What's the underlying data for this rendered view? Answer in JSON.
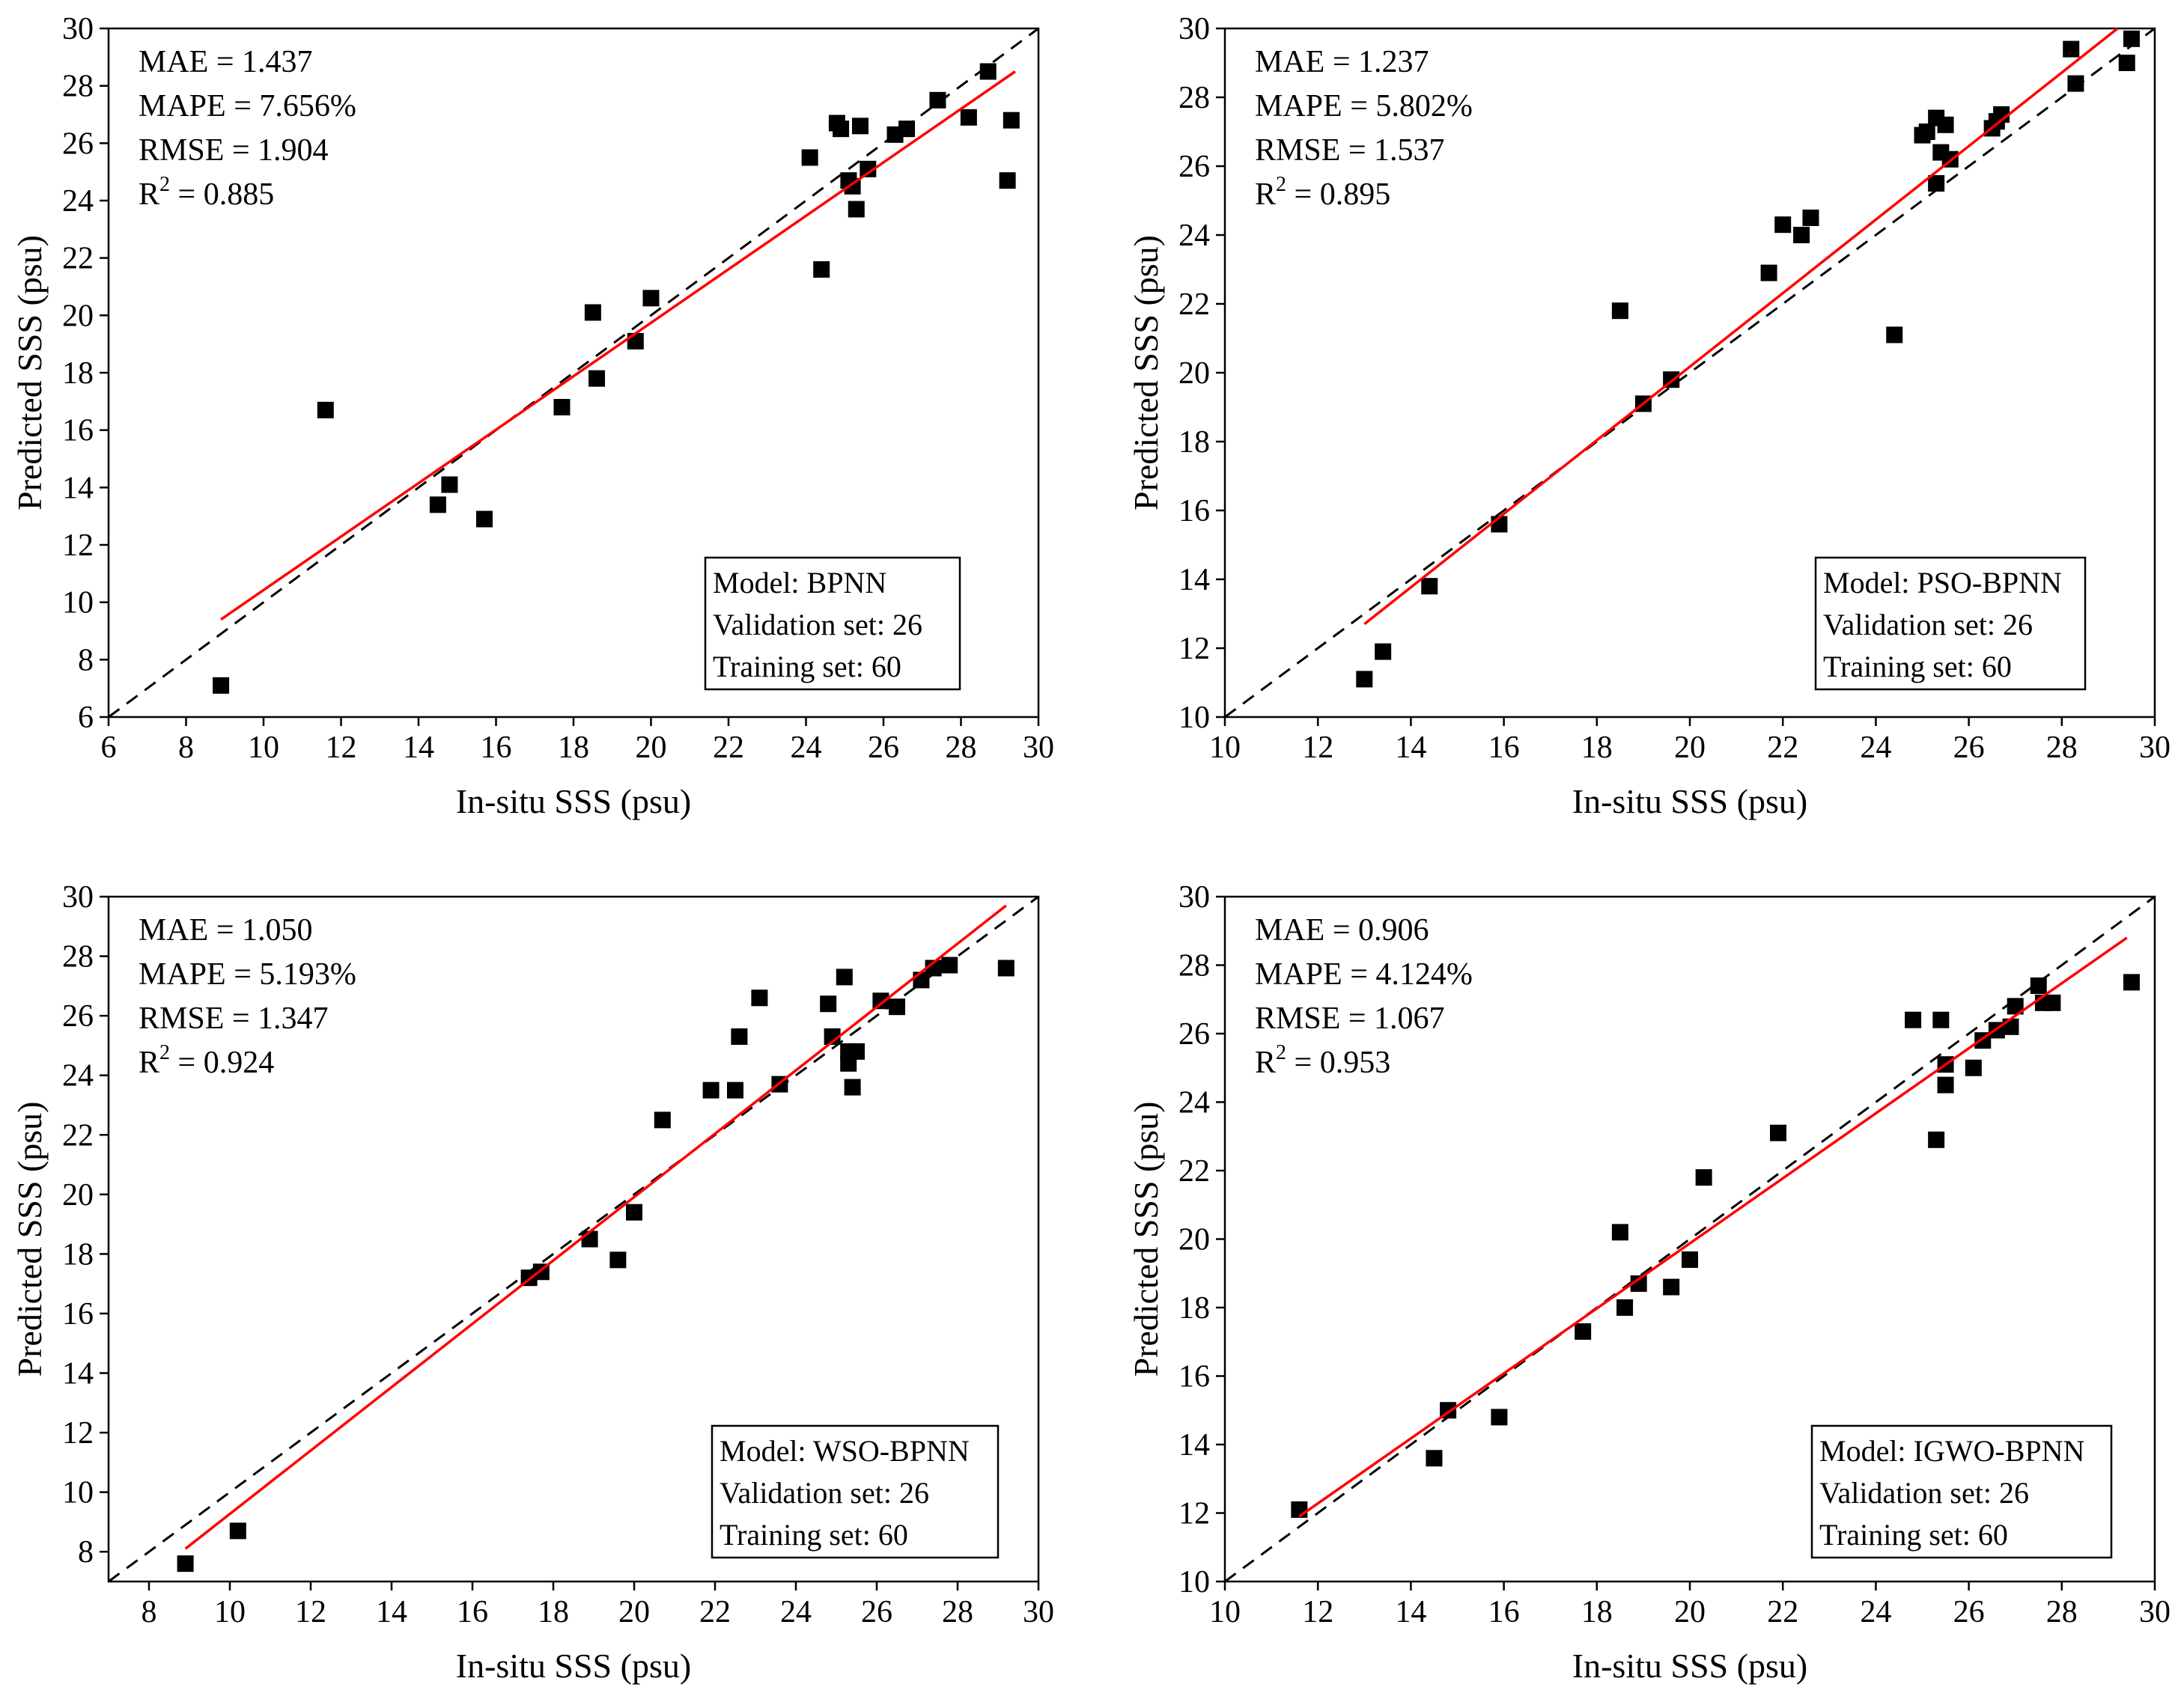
{
  "colors": {
    "points": "#000000",
    "fit_line": "#ff0000",
    "identity_line": "#000000",
    "background": "#ffffff"
  },
  "chart_data": [
    {
      "type": "scatter",
      "model": "BPNN",
      "xlabel": "In-situ SSS (psu)",
      "ylabel": "Predicted SSS (psu)",
      "xlim": [
        6,
        30
      ],
      "ylim": [
        6,
        30
      ],
      "xticks": [
        "6",
        "8",
        "10",
        "12",
        "14",
        "16",
        "18",
        "20",
        "22",
        "24",
        "26",
        "28",
        "30"
      ],
      "yticks": [
        "6",
        "8",
        "10",
        "12",
        "14",
        "16",
        "18",
        "20",
        "22",
        "24",
        "26",
        "28",
        "30"
      ],
      "stats": {
        "mae": "MAE = 1.437",
        "mape": "MAPE = 7.656%",
        "rmse": "RMSE = 1.904",
        "r2_prefix": "R",
        "r2_sup": "2",
        "r2_value": " = 0.885"
      },
      "legend": {
        "model": "Model: BPNN",
        "validation": "Validation set: 26",
        "training": "Training set: 60"
      },
      "fit_line": {
        "x": [
          8.9,
          29.4
        ],
        "y": [
          9.4,
          28.5
        ]
      },
      "identity_line": {
        "x": [
          6,
          30
        ],
        "y": [
          6,
          30
        ]
      },
      "points": {
        "x": [
          8.9,
          11.6,
          14.5,
          14.8,
          15.7,
          17.7,
          18.5,
          18.6,
          19.6,
          20.0,
          24.1,
          24.4,
          24.8,
          24.9,
          25.1,
          25.2,
          25.3,
          25.4,
          25.6,
          26.3,
          26.6,
          27.4,
          28.2,
          28.7,
          29.2,
          29.3
        ],
        "y": [
          7.1,
          16.7,
          13.4,
          14.1,
          12.9,
          16.8,
          20.1,
          17.8,
          19.1,
          20.6,
          25.5,
          21.6,
          26.7,
          26.5,
          24.7,
          24.5,
          23.7,
          26.6,
          25.1,
          26.3,
          26.5,
          27.5,
          26.9,
          28.5,
          24.7,
          26.8
        ]
      }
    },
    {
      "type": "scatter",
      "model": "PSO-BPNN",
      "xlabel": "In-situ SSS (psu)",
      "ylabel": "Predicted SSS (psu)",
      "xlim": [
        10,
        30
      ],
      "ylim": [
        10,
        30
      ],
      "xticks": [
        "10",
        "12",
        "14",
        "16",
        "18",
        "20",
        "22",
        "24",
        "26",
        "28",
        "30"
      ],
      "yticks": [
        "10",
        "12",
        "14",
        "16",
        "18",
        "20",
        "22",
        "24",
        "26",
        "28",
        "30"
      ],
      "stats": {
        "mae": "MAE = 1.237",
        "mape": "MAPE = 5.802%",
        "rmse": "RMSE = 1.537",
        "r2_prefix": "R",
        "r2_sup": "2",
        "r2_value": " = 0.895"
      },
      "legend": {
        "model": "Model: PSO-BPNN",
        "validation": "Validation set: 26",
        "training": "Training set: 60"
      },
      "fit_line": {
        "x": [
          13.0,
          29.2
        ],
        "y": [
          12.7,
          30.0
        ]
      },
      "identity_line": {
        "x": [
          10,
          30
        ],
        "y": [
          10,
          30
        ]
      },
      "points": {
        "x": [
          13.0,
          13.4,
          14.4,
          15.9,
          18.5,
          19.0,
          19.6,
          21.7,
          22.0,
          22.4,
          22.6,
          24.4,
          25.0,
          25.1,
          25.3,
          25.4,
          25.5,
          25.6,
          25.3,
          26.5,
          26.6,
          26.7,
          28.2,
          28.3,
          29.4,
          29.5
        ],
        "y": [
          11.1,
          11.9,
          13.8,
          15.6,
          21.8,
          19.1,
          19.8,
          22.9,
          24.3,
          24.0,
          24.5,
          21.1,
          26.9,
          27.0,
          27.4,
          26.4,
          27.2,
          26.2,
          25.5,
          27.1,
          27.3,
          27.5,
          29.4,
          28.4,
          29.0,
          29.7
        ]
      }
    },
    {
      "type": "scatter",
      "model": "WSO-BPNN",
      "xlabel": "In-situ SSS (psu)",
      "ylabel": "Predicted SSS (psu)",
      "xlim": [
        7,
        30
      ],
      "ylim": [
        7,
        30
      ],
      "xticks": [
        "8",
        "10",
        "12",
        "14",
        "16",
        "18",
        "20",
        "22",
        "24",
        "26",
        "28",
        "30"
      ],
      "yticks": [
        "8",
        "10",
        "12",
        "14",
        "16",
        "18",
        "20",
        "22",
        "24",
        "26",
        "28",
        "30"
      ],
      "stats": {
        "mae": "MAE = 1.050",
        "mape": "MAPE = 5.193%",
        "rmse": "RMSE = 1.347",
        "r2_prefix": "R",
        "r2_sup": "2",
        "r2_value": " = 0.924"
      },
      "legend": {
        "model": "Model: WSO-BPNN",
        "validation": "Validation set: 26",
        "training": "Training set: 60"
      },
      "fit_line": {
        "x": [
          8.9,
          29.2
        ],
        "y": [
          8.1,
          29.7
        ]
      },
      "identity_line": {
        "x": [
          7,
          30
        ],
        "y": [
          7,
          30
        ]
      },
      "points": {
        "x": [
          8.9,
          10.2,
          17.4,
          17.7,
          18.9,
          19.6,
          20.0,
          20.7,
          21.9,
          22.5,
          22.6,
          23.1,
          23.6,
          24.8,
          24.9,
          25.2,
          25.3,
          25.3,
          25.4,
          25.5,
          26.1,
          26.5,
          27.1,
          27.4,
          27.8,
          29.2
        ],
        "y": [
          7.6,
          8.7,
          17.2,
          17.4,
          18.5,
          17.8,
          19.4,
          22.5,
          23.5,
          23.5,
          25.3,
          26.6,
          23.7,
          26.4,
          25.3,
          27.3,
          24.8,
          24.4,
          23.6,
          24.8,
          26.5,
          26.3,
          27.2,
          27.6,
          27.7,
          27.6
        ]
      }
    },
    {
      "type": "scatter",
      "model": "IGWO-BPNN",
      "xlabel": "In-situ SSS (psu)",
      "ylabel": "Predicted SSS (psu)",
      "xlim": [
        10,
        30
      ],
      "ylim": [
        10,
        30
      ],
      "xticks": [
        "10",
        "12",
        "14",
        "16",
        "18",
        "20",
        "22",
        "24",
        "26",
        "28",
        "30"
      ],
      "yticks": [
        "10",
        "12",
        "14",
        "16",
        "18",
        "20",
        "22",
        "24",
        "26",
        "28",
        "30"
      ],
      "stats": {
        "mae": "MAE = 0.906",
        "mape": "MAPE = 4.124%",
        "rmse": "RMSE = 1.067",
        "r2_prefix": "R",
        "r2_sup": "2",
        "r2_value": " = 0.953"
      },
      "legend": {
        "model": "Model: IGWO-BPNN",
        "validation": "Validation set: 26",
        "training": "Training set: 60"
      },
      "fit_line": {
        "x": [
          11.6,
          29.4
        ],
        "y": [
          11.9,
          28.8
        ]
      },
      "identity_line": {
        "x": [
          10,
          30
        ],
        "y": [
          10,
          30
        ]
      },
      "points": {
        "x": [
          11.6,
          14.5,
          14.8,
          15.9,
          17.7,
          18.5,
          18.6,
          18.9,
          19.6,
          20.0,
          20.3,
          21.9,
          24.8,
          25.3,
          25.4,
          25.5,
          25.5,
          26.1,
          26.3,
          26.6,
          26.9,
          27.0,
          27.5,
          27.6,
          27.8,
          29.5
        ],
        "y": [
          12.1,
          13.6,
          15.0,
          14.8,
          17.3,
          20.2,
          18.0,
          18.7,
          18.6,
          19.4,
          21.8,
          23.1,
          26.4,
          22.9,
          26.4,
          25.1,
          24.5,
          25.0,
          25.8,
          26.1,
          26.2,
          26.8,
          27.4,
          26.9,
          26.9,
          27.5
        ]
      }
    }
  ]
}
